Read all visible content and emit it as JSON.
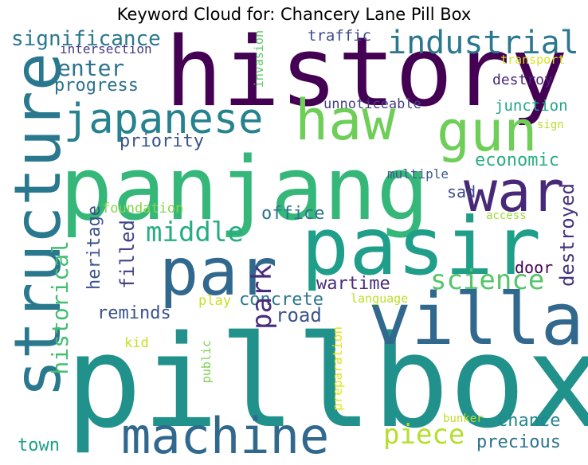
{
  "title": "Keyword Cloud for: Chancery Lane Pill Box",
  "words": [
    {
      "text": "pillbox",
      "color": "#21918c"
    },
    {
      "text": "history",
      "color": "#440154"
    },
    {
      "text": "panjang",
      "color": "#35b779"
    },
    {
      "text": "pasir",
      "color": "#1f9e89"
    },
    {
      "text": "structure",
      "color": "#2a788e"
    },
    {
      "text": "villa",
      "color": "#31688e"
    },
    {
      "text": "par",
      "color": "#31688e"
    },
    {
      "text": "haw",
      "color": "#6ece58"
    },
    {
      "text": "gun",
      "color": "#6ece58"
    },
    {
      "text": "war",
      "color": "#482878"
    },
    {
      "text": "machine",
      "color": "#31688e"
    },
    {
      "text": "japanese",
      "color": "#26828e"
    },
    {
      "text": "industrial",
      "color": "#2a788e"
    },
    {
      "text": "significance",
      "color": "#2a788e"
    },
    {
      "text": "enter",
      "color": "#2c728e"
    },
    {
      "text": "progress",
      "color": "#2c728e"
    },
    {
      "text": "intersection",
      "color": "#443983"
    },
    {
      "text": "traffic",
      "color": "#3e4989"
    },
    {
      "text": "transport",
      "color": "#dce319"
    },
    {
      "text": "invasion",
      "color": "#5ec962"
    },
    {
      "text": "destroy",
      "color": "#482878"
    },
    {
      "text": "unnoticeable",
      "color": "#433e85"
    },
    {
      "text": "junction",
      "color": "#21a685"
    },
    {
      "text": "sign",
      "color": "#b5de2b"
    },
    {
      "text": "priority",
      "color": "#3b528b"
    },
    {
      "text": "economic",
      "color": "#29af7f"
    },
    {
      "text": "multiple",
      "color": "#38598c"
    },
    {
      "text": "sad",
      "color": "#3e4989"
    },
    {
      "text": "destroyed",
      "color": "#46337e"
    },
    {
      "text": "foundation",
      "color": "#86d549"
    },
    {
      "text": "access",
      "color": "#a0da39"
    },
    {
      "text": "office",
      "color": "#2c728e"
    },
    {
      "text": "middle",
      "color": "#27ad81"
    },
    {
      "text": "heritage",
      "color": "#3b528b"
    },
    {
      "text": "filled",
      "color": "#404387"
    },
    {
      "text": "historical",
      "color": "#42be71"
    },
    {
      "text": "science",
      "color": "#54c568"
    },
    {
      "text": "door",
      "color": "#440154"
    },
    {
      "text": "wartime",
      "color": "#472d7b"
    },
    {
      "text": "concrete",
      "color": "#2a788e"
    },
    {
      "text": "park",
      "color": "#472d7b"
    },
    {
      "text": "play",
      "color": "#c8e020"
    },
    {
      "text": "language",
      "color": "#bddf26"
    },
    {
      "text": "reminds",
      "color": "#3b528b"
    },
    {
      "text": "road",
      "color": "#3b528b"
    },
    {
      "text": "kid",
      "color": "#c8e020"
    },
    {
      "text": "public",
      "color": "#7ad151"
    },
    {
      "text": "preparation",
      "color": "#e5e419"
    },
    {
      "text": "piece",
      "color": "#b5de2b"
    },
    {
      "text": "chance",
      "color": "#24878e"
    },
    {
      "text": "bunker",
      "color": "#bddf26"
    },
    {
      "text": "precious",
      "color": "#2c728e"
    },
    {
      "text": "town",
      "color": "#1fa088"
    }
  ]
}
